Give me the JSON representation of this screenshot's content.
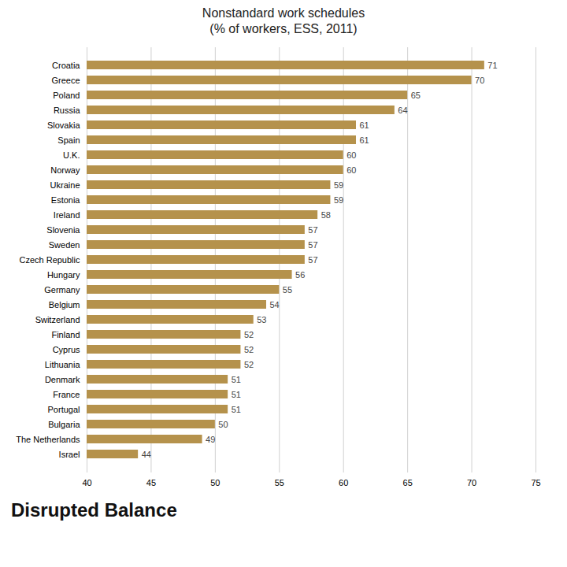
{
  "chart_data": {
    "type": "bar",
    "orientation": "horizontal",
    "title": "Nonstandard work schedules",
    "subtitle": "(% of workers, ESS, 2011)",
    "annotations": [
      "Disrupted Balance"
    ],
    "categories": [
      "Croatia",
      "Greece",
      "Poland",
      "Russia",
      "Slovakia",
      "Spain",
      "U.K.",
      "Norway",
      "Ukraine",
      "Estonia",
      "Ireland",
      "Slovenia",
      "Sweden",
      "Czech Republic",
      "Hungary",
      "Germany",
      "Belgium",
      "Switzerland",
      "Finland",
      "Cyprus",
      "Lithuania",
      "Denmark",
      "France",
      "Portugal",
      "Bulgaria",
      "The Netherlands",
      "Israel"
    ],
    "values": [
      71,
      70,
      65,
      64,
      61,
      61,
      60,
      60,
      59,
      59,
      58,
      57,
      57,
      57,
      56,
      55,
      54,
      53,
      52,
      52,
      52,
      51,
      51,
      51,
      50,
      49,
      44
    ],
    "color": "#b5924c",
    "xlim": [
      40,
      75
    ],
    "xticks": [
      40,
      45,
      50,
      55,
      60,
      65,
      70,
      75
    ],
    "grid": true,
    "data_labels": true
  }
}
